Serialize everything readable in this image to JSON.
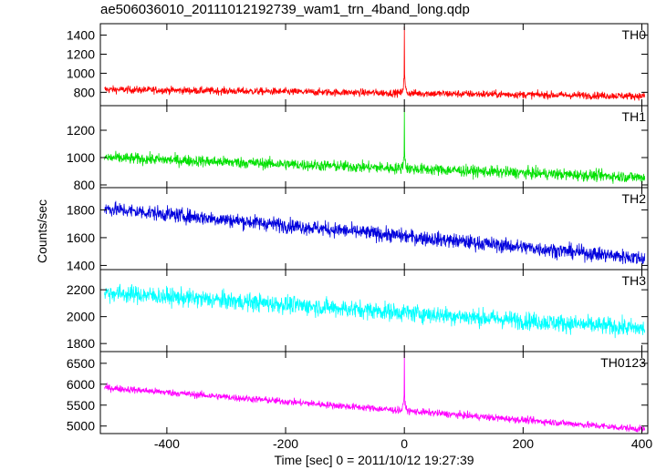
{
  "chart_data": {
    "type": "line",
    "title": "ae506036010_20111012192739_wam1_trn_4band_long.qdp",
    "xlabel": "Time [sec] 0 = 2011/10/12 19:27:39",
    "ylabel": "Counts/sec",
    "xlim": [
      -512,
      410
    ],
    "xticks": [
      -400,
      -200,
      0,
      200,
      400
    ],
    "grid": false,
    "panels": [
      {
        "name": "TH0",
        "color": "#ff0000",
        "ylim": [
          660,
          1520
        ],
        "yticks": [
          800,
          1000,
          1200,
          1400
        ],
        "trend": {
          "x": [
            -505,
            405
          ],
          "y": [
            830,
            760
          ]
        },
        "noise": 28,
        "spike": {
          "x": 0,
          "peak": 1490
        }
      },
      {
        "name": "TH1",
        "color": "#00e000",
        "ylim": [
          780,
          1380
        ],
        "yticks": [
          800,
          1000,
          1200
        ],
        "trend": {
          "x": [
            -505,
            405
          ],
          "y": [
            1000,
            855
          ]
        },
        "noise": 30,
        "spike": {
          "x": 0,
          "peak": 1360
        }
      },
      {
        "name": "TH2",
        "color": "#0000dd",
        "ylim": [
          1370,
          1960
        ],
        "yticks": [
          1400,
          1600,
          1800
        ],
        "trend": {
          "x": [
            -505,
            405
          ],
          "y": [
            1810,
            1450
          ]
        },
        "noise": 38,
        "spike": null
      },
      {
        "name": "TH3",
        "color": "#00ffff",
        "ylim": [
          1740,
          2350
        ],
        "yticks": [
          1800,
          2000,
          2200
        ],
        "trend": {
          "x": [
            -505,
            405
          ],
          "y": [
            2180,
            1910
          ]
        },
        "noise": 48,
        "spike": null
      },
      {
        "name": "TH0123",
        "color": "#ff00ff",
        "ylim": [
          4820,
          6780
        ],
        "yticks": [
          5000,
          5500,
          6000,
          6500
        ],
        "trend": {
          "x": [
            -505,
            405
          ],
          "y": [
            5920,
            4920
          ]
        },
        "noise": 60,
        "spike": {
          "x": 0,
          "peak": 6760
        }
      }
    ]
  }
}
